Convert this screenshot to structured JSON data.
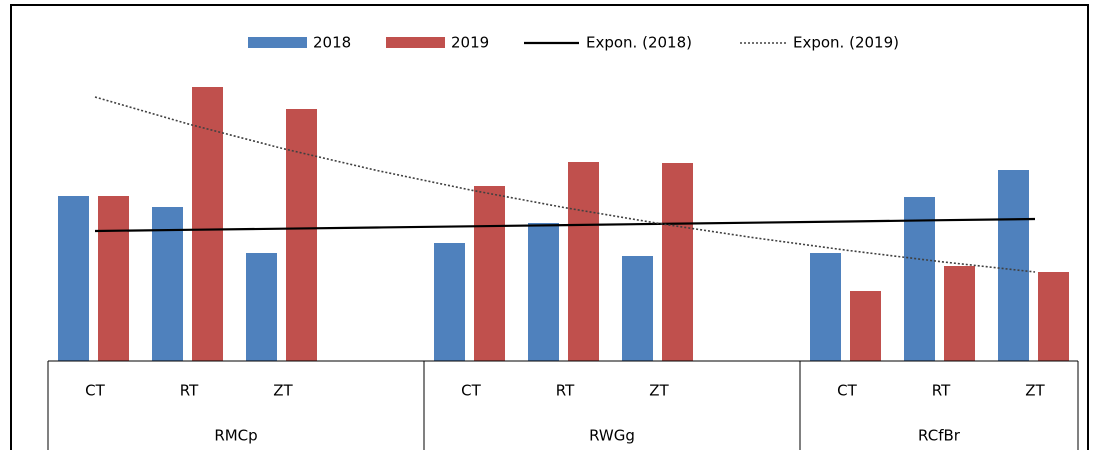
{
  "chart_data": {
    "type": "bar",
    "categories": [
      "CT",
      "RT",
      "ZT",
      null,
      "CT",
      "RT",
      "ZT",
      null,
      "CT",
      "RT",
      "ZT"
    ],
    "groups": [
      "RMCp",
      "RWGg",
      "RCfBr"
    ],
    "series": [
      {
        "name": "2018",
        "color": "#4f81bd",
        "values": [
          165,
          154,
          108,
          null,
          118,
          138,
          105,
          null,
          108,
          164,
          191
        ]
      },
      {
        "name": "2019",
        "color": "#c0504d",
        "values": [
          165,
          274,
          252,
          null,
          175,
          199,
          198,
          null,
          70,
          95,
          89
        ]
      }
    ],
    "trendlines": [
      {
        "name": "Expon. (2018)",
        "color": "#000000",
        "dotted": false,
        "values": [
          130,
          131.2,
          132.3,
          133.5,
          134.7,
          135.9,
          137.1,
          138.3,
          139.5,
          140.8,
          142
        ]
      },
      {
        "name": "Expon. (2019)",
        "color": "#404040",
        "dotted": true,
        "values": [
          264,
          236.8,
          212.4,
          190.5,
          170.9,
          153.3,
          137.5,
          123.4,
          110.7,
          99.3,
          89
        ]
      }
    ],
    "ylim": [
      0,
      300
    ]
  }
}
